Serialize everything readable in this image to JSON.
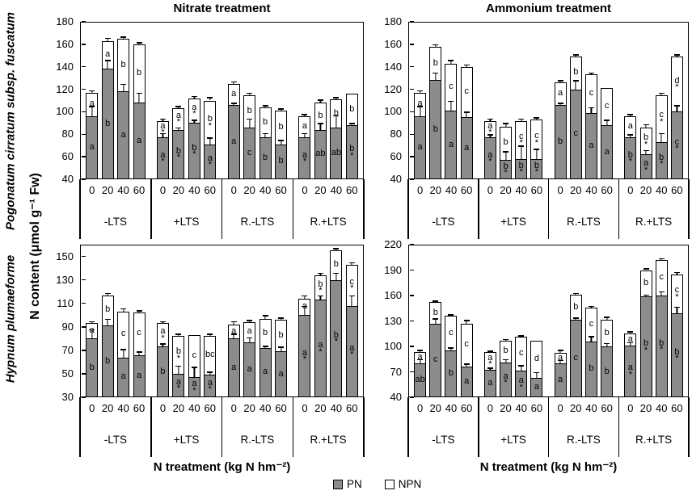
{
  "labels": {
    "species_top": "Pogonatum cirratum subsp. fuscatum",
    "species_bottom": "Hypnum plumaeforme",
    "y_axis": "N content (μmol g⁻¹ Fw)",
    "x_axis": "N treatment (kg N hm⁻²)"
  },
  "legend": {
    "pn_label": "PN",
    "npn_label": "NPN"
  },
  "colors": {
    "pn_fill": "#8c8c8c",
    "npn_fill": "#ffffff",
    "outline": "#000000"
  },
  "chart_data": [
    {
      "id": "nitrate-pogonatum",
      "type": "bar",
      "stacked": true,
      "title": "Nitrate treatment",
      "species": "Pogonatum cirratum subsp. fuscatum",
      "ylim": [
        40,
        180
      ],
      "yticks": [
        40,
        60,
        80,
        100,
        120,
        140,
        160,
        180
      ],
      "groups": [
        "-LTS",
        "+LTS",
        "R.-LTS",
        "R.+LTS"
      ],
      "doses": [
        "0",
        "20",
        "40",
        "60"
      ],
      "series": [
        "PN",
        "NPN"
      ],
      "bar_columns": [
        "group",
        "dose",
        "PN_value",
        "total_value",
        "PN_err",
        "total_err",
        "PN_sig_letter",
        "NPN_sig_letter"
      ],
      "bars": [
        [
          "-LTS",
          "0",
          96,
          117,
          9,
          2,
          "a",
          "a"
        ],
        [
          "-LTS",
          "20",
          138,
          163,
          8,
          3,
          "b",
          "a"
        ],
        [
          "-LTS",
          "40",
          118,
          165,
          7,
          2,
          "a",
          "b"
        ],
        [
          "-LTS",
          "60",
          108,
          160,
          9,
          2,
          "a",
          "b"
        ],
        [
          "+LTS",
          "0",
          77,
          92,
          4,
          2,
          "a*",
          "a*"
        ],
        [
          "+LTS",
          "20",
          84,
          103,
          2,
          2,
          "b*",
          "a*"
        ],
        [
          "+LTS",
          "40",
          90,
          112,
          3,
          2,
          "b*",
          "a*"
        ],
        [
          "+LTS",
          "60",
          71,
          110,
          6,
          3,
          "a*",
          "b*"
        ],
        [
          "R.-LTS",
          "0",
          106,
          125,
          2,
          2,
          "a",
          "a"
        ],
        [
          "R.-LTS",
          "20",
          86,
          115,
          8,
          2,
          "c",
          "b"
        ],
        [
          "R.-LTS",
          "40",
          77,
          104,
          4,
          2,
          "b",
          "b"
        ],
        [
          "R.-LTS",
          "60",
          71,
          101,
          4,
          2,
          "b",
          "b"
        ],
        [
          "R.+LTS",
          "0",
          77,
          96,
          4,
          2,
          "a*",
          "a"
        ],
        [
          "R.+LTS",
          "20",
          84,
          108,
          6,
          3,
          "ab",
          "b"
        ],
        [
          "R.+LTS",
          "40",
          86,
          111,
          11,
          2,
          "ab",
          "b"
        ],
        [
          "R.+LTS",
          "60",
          88,
          116,
          2,
          1,
          "b*",
          "b"
        ]
      ]
    },
    {
      "id": "ammonium-pogonatum",
      "type": "bar",
      "stacked": true,
      "title": "Ammonium treatment",
      "species": "Pogonatum cirratum subsp. fuscatum",
      "ylim": [
        40,
        180
      ],
      "yticks": [
        40,
        60,
        80,
        100,
        120,
        140,
        160,
        180
      ],
      "groups": [
        "-LTS",
        "+LTS",
        "R.-LTS",
        "R.+LTS"
      ],
      "doses": [
        "0",
        "20",
        "40",
        "60"
      ],
      "series": [
        "PN",
        "NPN"
      ],
      "bar_columns": [
        "group",
        "dose",
        "PN_value",
        "total_value",
        "PN_err",
        "total_err",
        "PN_sig_letter",
        "NPN_sig_letter"
      ],
      "bars": [
        [
          "-LTS",
          "0",
          96,
          117,
          9,
          2,
          "a",
          "a"
        ],
        [
          "-LTS",
          "20",
          128,
          158,
          7,
          2,
          "b",
          "b"
        ],
        [
          "-LTS",
          "40",
          101,
          143,
          9,
          3,
          "a",
          "c"
        ],
        [
          "-LTS",
          "60",
          95,
          140,
          5,
          2,
          "a",
          "c"
        ],
        [
          "+LTS",
          "0",
          77,
          92,
          3,
          2,
          "a*",
          "a*"
        ],
        [
          "+LTS",
          "20",
          57,
          87,
          8,
          3,
          "b*",
          "b"
        ],
        [
          "+LTS",
          "40",
          58,
          92,
          12,
          2,
          "b*",
          "c*"
        ],
        [
          "+LTS",
          "60",
          58,
          93,
          9,
          2,
          "b*",
          "c*"
        ],
        [
          "R.-LTS",
          "0",
          106,
          126,
          2,
          2,
          "b",
          "a"
        ],
        [
          "R.-LTS",
          "20",
          120,
          149,
          8,
          2,
          "c",
          "b"
        ],
        [
          "R.-LTS",
          "40",
          99,
          133,
          5,
          2,
          "a",
          "c"
        ],
        [
          "R.-LTS",
          "60",
          88,
          121,
          5,
          1,
          "a",
          "c"
        ],
        [
          "R.+LTS",
          "0",
          77,
          96,
          3,
          2,
          "b*",
          "a"
        ],
        [
          "R.+LTS",
          "20",
          62,
          86,
          4,
          3,
          "a*",
          "b*"
        ],
        [
          "R.+LTS",
          "40",
          73,
          115,
          8,
          2,
          "b*",
          "c*"
        ],
        [
          "R.+LTS",
          "60",
          100,
          149,
          6,
          2,
          "c*",
          "d*"
        ]
      ]
    },
    {
      "id": "nitrate-hypnum",
      "type": "bar",
      "stacked": true,
      "title": "",
      "species": "Hypnum plumaeforme",
      "ylim": [
        30,
        160
      ],
      "yticks": [
        30,
        50,
        70,
        90,
        110,
        130,
        150
      ],
      "groups": [
        "-LTS",
        "+LTS",
        "R.-LTS",
        "R.+LTS"
      ],
      "doses": [
        "0",
        "20",
        "40",
        "60"
      ],
      "series": [
        "PN",
        "NPN"
      ],
      "bar_columns": [
        "group",
        "dose",
        "PN_value",
        "total_value",
        "PN_err",
        "total_err",
        "PN_sig_letter",
        "NPN_sig_letter"
      ],
      "bars": [
        [
          "-LTS",
          "0",
          80,
          93,
          8,
          2,
          "b",
          "a"
        ],
        [
          "-LTS",
          "20",
          91,
          117,
          6,
          2,
          "b",
          "b"
        ],
        [
          "-LTS",
          "40",
          64,
          103,
          7,
          3,
          "a",
          "c"
        ],
        [
          "-LTS",
          "60",
          66,
          102,
          3,
          2,
          "a",
          "c"
        ],
        [
          "+LTS",
          "0",
          73,
          93,
          3,
          2,
          "b",
          "a*"
        ],
        [
          "+LTS",
          "20",
          50,
          82,
          7,
          2,
          "a*",
          "b*"
        ],
        [
          "+LTS",
          "40",
          47,
          83,
          9,
          1,
          "a*",
          "c"
        ],
        [
          "+LTS",
          "60",
          49,
          82,
          3,
          2,
          "a*",
          "bc"
        ],
        [
          "R.-LTS",
          "0",
          80,
          92,
          4,
          3,
          "a",
          "a"
        ],
        [
          "R.-LTS",
          "20",
          77,
          94,
          4,
          2,
          "a",
          "a"
        ],
        [
          "R.-LTS",
          "40",
          72,
          97,
          2,
          3,
          "a",
          "b"
        ],
        [
          "R.-LTS",
          "60",
          69,
          96,
          4,
          2,
          "a",
          "b"
        ],
        [
          "R.+LTS",
          "0",
          100,
          114,
          8,
          3,
          "a*",
          "a"
        ],
        [
          "R.+LTS",
          "20",
          113,
          134,
          4,
          2,
          "a*",
          "b*"
        ],
        [
          "R.+LTS",
          "40",
          130,
          155,
          6,
          2,
          "b*",
          "b"
        ],
        [
          "R.+LTS",
          "60",
          108,
          143,
          9,
          2,
          "a*",
          "c*"
        ]
      ]
    },
    {
      "id": "ammonium-hypnum",
      "type": "bar",
      "stacked": true,
      "title": "",
      "species": "Hypnum plumaeforme",
      "ylim": [
        40,
        220
      ],
      "yticks": [
        40,
        70,
        100,
        130,
        160,
        190,
        220
      ],
      "groups": [
        "-LTS",
        "+LTS",
        "R.-LTS",
        "R.+LTS"
      ],
      "doses": [
        "0",
        "20",
        "40",
        "60"
      ],
      "series": [
        "PN",
        "NPN"
      ],
      "bar_columns": [
        "group",
        "dose",
        "PN_value",
        "total_value",
        "PN_err",
        "total_err",
        "PN_sig_letter",
        "NPN_sig_letter"
      ],
      "bars": [
        [
          "-LTS",
          "0",
          80,
          93,
          5,
          3,
          "ab",
          "a"
        ],
        [
          "-LTS",
          "20",
          127,
          152,
          6,
          2,
          "c",
          "b"
        ],
        [
          "-LTS",
          "40",
          95,
          136,
          4,
          2,
          "b",
          "c"
        ],
        [
          "-LTS",
          "60",
          76,
          127,
          4,
          4,
          "a",
          "c"
        ],
        [
          "+LTS",
          "0",
          72,
          93,
          3,
          2,
          "a",
          "a*"
        ],
        [
          "+LTS",
          "20",
          81,
          107,
          4,
          2,
          "a*",
          "b"
        ],
        [
          "+LTS",
          "40",
          71,
          111,
          7,
          2,
          "a*",
          "c"
        ],
        [
          "+LTS",
          "60",
          63,
          107,
          7,
          1,
          "a",
          "d"
        ],
        [
          "R.-LTS",
          "0",
          80,
          92,
          4,
          4,
          "a",
          "a"
        ],
        [
          "R.-LTS",
          "20",
          131,
          161,
          3,
          2,
          "c",
          "b"
        ],
        [
          "R.-LTS",
          "40",
          106,
          146,
          6,
          2,
          "b",
          "c"
        ],
        [
          "R.-LTS",
          "60",
          100,
          131,
          4,
          4,
          "b",
          "b"
        ],
        [
          "R.+LTS",
          "0",
          101,
          115,
          4,
          3,
          "a*",
          "a"
        ],
        [
          "R.+LTS",
          "20",
          159,
          190,
          2,
          2,
          "b*",
          "b"
        ],
        [
          "R.+LTS",
          "40",
          160,
          202,
          5,
          2,
          "b*",
          "c"
        ],
        [
          "R.+LTS",
          "60",
          139,
          185,
          8,
          3,
          "b*",
          "c*"
        ]
      ]
    }
  ]
}
